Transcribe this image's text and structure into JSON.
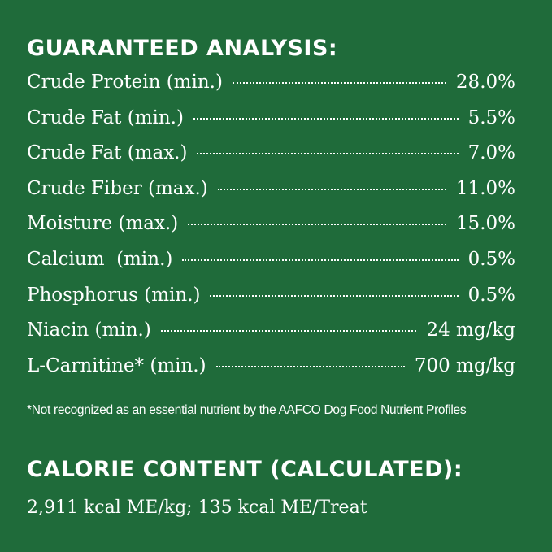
{
  "guaranteed_analysis": {
    "heading": "GUARANTEED ANALYSIS:",
    "rows": [
      {
        "label": "Crude Protein (min.)",
        "value": "28.0%"
      },
      {
        "label": "Crude Fat (min.)",
        "value": "5.5%"
      },
      {
        "label": "Crude Fat (max.)",
        "value": "7.0%"
      },
      {
        "label": "Crude Fiber (max.)",
        "value": "11.0%"
      },
      {
        "label": "Moisture (max.)",
        "value": "15.0%"
      },
      {
        "label": "Calcium  (min.)",
        "value": "0.5%"
      },
      {
        "label": "Phosphorus (min.)",
        "value": "0.5%"
      },
      {
        "label": "Niacin (min.)",
        "value": "24 mg/kg"
      },
      {
        "label": "L-Carnitine* (min.)",
        "value": "700 mg/kg"
      }
    ],
    "footnote": "*Not recognized as an essential nutrient by the AAFCO Dog Food Nutrient Profiles"
  },
  "calorie_content": {
    "heading": "CALORIE CONTENT (CALCULATED):",
    "text": "2,911 kcal ME/kg; 135 kcal ME/Treat"
  },
  "colors": {
    "background": "#1f6b3a",
    "text": "#ffffff"
  }
}
